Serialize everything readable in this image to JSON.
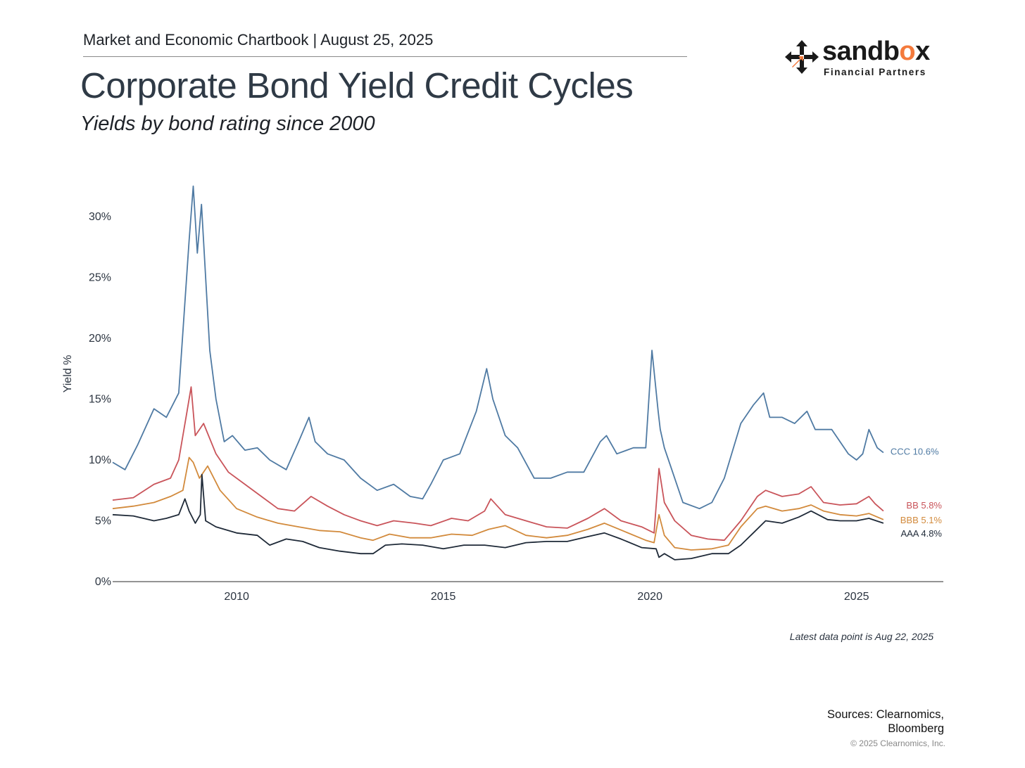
{
  "header": {
    "kicker": "Market and Economic Chartbook | August 25, 2025",
    "title": "Corporate Bond Yield Credit Cycles",
    "subtitle": "Yields by bond rating since 2000"
  },
  "logo": {
    "word_start": "sandb",
    "word_o": "o",
    "word_end": "x",
    "tagline": "Financial Partners",
    "accent_color": "#f47a3c"
  },
  "chart_data": {
    "type": "line",
    "ylabel": "Yield %",
    "xlabel": "",
    "ylim": [
      0,
      33
    ],
    "xlim": [
      2007.0,
      2027.1
    ],
    "y_ticks": [
      0,
      5,
      10,
      15,
      20,
      25,
      30
    ],
    "y_tick_labels": [
      "0%",
      "5%",
      "10%",
      "15%",
      "20%",
      "25%",
      "30%"
    ],
    "x_ticks": [
      2010,
      2015,
      2020,
      2025
    ],
    "x_tick_labels": [
      "2010",
      "2015",
      "2020",
      "2025"
    ],
    "grid": false,
    "series": [
      {
        "name": "CCC",
        "end_label": "CCC 10.6%",
        "color": "#4f7aa3",
        "x": [
          2007.0,
          2007.3,
          2007.6,
          2008.0,
          2008.3,
          2008.6,
          2008.85,
          2008.95,
          2009.05,
          2009.15,
          2009.25,
          2009.35,
          2009.5,
          2009.7,
          2009.9,
          2010.2,
          2010.5,
          2010.8,
          2011.2,
          2011.5,
          2011.75,
          2011.9,
          2012.2,
          2012.6,
          2013.0,
          2013.4,
          2013.8,
          2014.2,
          2014.5,
          2014.7,
          2015.0,
          2015.4,
          2015.8,
          2016.05,
          2016.2,
          2016.5,
          2016.8,
          2017.2,
          2017.6,
          2018.0,
          2018.4,
          2018.8,
          2018.95,
          2019.2,
          2019.6,
          2019.9,
          2020.05,
          2020.2,
          2020.25,
          2020.35,
          2020.5,
          2020.8,
          2021.2,
          2021.5,
          2021.8,
          2022.2,
          2022.5,
          2022.75,
          2022.9,
          2023.2,
          2023.5,
          2023.8,
          2024.0,
          2024.4,
          2024.8,
          2025.0,
          2025.15,
          2025.3,
          2025.5,
          2025.65
        ],
        "values": [
          9.8,
          9.2,
          11.2,
          14.2,
          13.5,
          15.5,
          28.0,
          32.5,
          27.0,
          31.0,
          25.0,
          19.0,
          15.0,
          11.5,
          12.0,
          10.8,
          11.0,
          10.0,
          9.2,
          11.5,
          13.5,
          11.5,
          10.5,
          10.0,
          8.5,
          7.5,
          8.0,
          7.0,
          6.8,
          8.0,
          10.0,
          10.5,
          14.0,
          17.5,
          15.0,
          12.0,
          11.0,
          8.5,
          8.5,
          9.0,
          9.0,
          11.5,
          12.0,
          10.5,
          11.0,
          11.0,
          19.0,
          14.0,
          12.5,
          11.0,
          9.5,
          6.5,
          6.0,
          6.5,
          8.5,
          13.0,
          14.5,
          15.5,
          13.5,
          13.5,
          13.0,
          14.0,
          12.5,
          12.5,
          10.5,
          10.0,
          10.5,
          12.5,
          11.0,
          10.6
        ]
      },
      {
        "name": "BB",
        "end_label": "BB 5.8%",
        "color": "#c9545a",
        "x": [
          2007.0,
          2007.5,
          2008.0,
          2008.4,
          2008.6,
          2008.8,
          2008.9,
          2009.0,
          2009.2,
          2009.5,
          2009.8,
          2010.2,
          2010.6,
          2011.0,
          2011.4,
          2011.8,
          2012.2,
          2012.6,
          2013.0,
          2013.4,
          2013.8,
          2014.3,
          2014.7,
          2015.2,
          2015.6,
          2016.0,
          2016.15,
          2016.5,
          2017.0,
          2017.5,
          2018.0,
          2018.5,
          2018.9,
          2019.3,
          2019.8,
          2020.1,
          2020.22,
          2020.35,
          2020.6,
          2021.0,
          2021.4,
          2021.8,
          2022.2,
          2022.6,
          2022.8,
          2023.2,
          2023.6,
          2023.9,
          2024.2,
          2024.6,
          2025.0,
          2025.3,
          2025.45,
          2025.65
        ],
        "values": [
          6.7,
          6.9,
          8.0,
          8.5,
          10.0,
          14.0,
          16.0,
          12.0,
          13.0,
          10.5,
          9.0,
          8.0,
          7.0,
          6.0,
          5.8,
          7.0,
          6.2,
          5.5,
          5.0,
          4.6,
          5.0,
          4.8,
          4.6,
          5.2,
          5.0,
          5.8,
          6.8,
          5.5,
          5.0,
          4.5,
          4.4,
          5.2,
          6.0,
          5.0,
          4.5,
          4.0,
          9.3,
          6.5,
          5.0,
          3.8,
          3.5,
          3.4,
          5.0,
          7.0,
          7.5,
          7.0,
          7.2,
          7.8,
          6.5,
          6.3,
          6.4,
          7.0,
          6.4,
          5.8
        ]
      },
      {
        "name": "BBB",
        "end_label": "BBB 5.1%",
        "color": "#d28a3c",
        "x": [
          2007.0,
          2007.5,
          2008.0,
          2008.4,
          2008.7,
          2008.85,
          2008.95,
          2009.1,
          2009.3,
          2009.6,
          2010.0,
          2010.5,
          2011.0,
          2011.5,
          2012.0,
          2012.5,
          2013.0,
          2013.3,
          2013.7,
          2014.2,
          2014.7,
          2015.2,
          2015.7,
          2016.1,
          2016.5,
          2017.0,
          2017.5,
          2018.0,
          2018.5,
          2018.9,
          2019.4,
          2019.9,
          2020.1,
          2020.22,
          2020.35,
          2020.6,
          2021.0,
          2021.5,
          2021.9,
          2022.2,
          2022.6,
          2022.8,
          2023.2,
          2023.6,
          2023.9,
          2024.2,
          2024.6,
          2025.0,
          2025.3,
          2025.65
        ],
        "values": [
          6.0,
          6.2,
          6.5,
          7.0,
          7.5,
          10.2,
          9.8,
          8.5,
          9.5,
          7.5,
          6.0,
          5.3,
          4.8,
          4.5,
          4.2,
          4.1,
          3.6,
          3.4,
          3.9,
          3.6,
          3.6,
          3.9,
          3.8,
          4.3,
          4.6,
          3.8,
          3.6,
          3.8,
          4.3,
          4.8,
          4.1,
          3.4,
          3.2,
          5.5,
          3.8,
          2.8,
          2.6,
          2.7,
          3.0,
          4.5,
          6.0,
          6.2,
          5.8,
          6.0,
          6.3,
          5.8,
          5.5,
          5.4,
          5.6,
          5.1
        ]
      },
      {
        "name": "AAA",
        "end_label": "AAA 4.8%",
        "color": "#1f2a38",
        "x": [
          2007.0,
          2007.5,
          2008.0,
          2008.3,
          2008.6,
          2008.75,
          2008.85,
          2009.0,
          2009.12,
          2009.16,
          2009.25,
          2009.5,
          2010.0,
          2010.5,
          2010.8,
          2011.2,
          2011.6,
          2012.0,
          2012.5,
          2013.0,
          2013.3,
          2013.6,
          2014.0,
          2014.5,
          2015.0,
          2015.5,
          2016.0,
          2016.5,
          2017.0,
          2017.5,
          2018.0,
          2018.5,
          2018.9,
          2019.3,
          2019.8,
          2020.15,
          2020.22,
          2020.35,
          2020.6,
          2021.0,
          2021.5,
          2021.9,
          2022.2,
          2022.5,
          2022.8,
          2023.2,
          2023.6,
          2023.9,
          2024.3,
          2024.6,
          2025.0,
          2025.3,
          2025.65
        ],
        "values": [
          5.5,
          5.4,
          5.0,
          5.2,
          5.5,
          6.8,
          5.8,
          4.8,
          5.5,
          8.8,
          5.0,
          4.5,
          4.0,
          3.8,
          3.0,
          3.5,
          3.3,
          2.8,
          2.5,
          2.3,
          2.3,
          3.0,
          3.1,
          3.0,
          2.7,
          3.0,
          3.0,
          2.8,
          3.2,
          3.3,
          3.3,
          3.7,
          4.0,
          3.5,
          2.8,
          2.7,
          2.0,
          2.3,
          1.8,
          1.9,
          2.3,
          2.3,
          3.0,
          4.0,
          5.0,
          4.8,
          5.3,
          5.8,
          5.1,
          5.0,
          5.0,
          5.2,
          4.8
        ]
      }
    ]
  },
  "footer": {
    "latest": "Latest data point is Aug 22, 2025",
    "sources_line1": "Sources: Clearnomics,",
    "sources_line2": "Bloomberg",
    "copyright": "© 2025 Clearnomics, Inc."
  }
}
